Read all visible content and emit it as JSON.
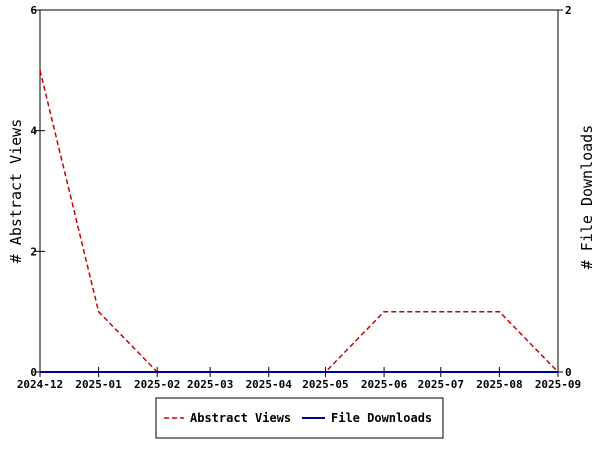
{
  "chart_data": {
    "type": "line",
    "x": [
      "2024-12",
      "2025-01",
      "2025-02",
      "2025-03",
      "2025-04",
      "2025-05",
      "2025-06",
      "2025-07",
      "2025-08",
      "2025-09"
    ],
    "x_dates": [
      "2024-12-01",
      "2025-01-01",
      "2025-02-01",
      "2025-03-01",
      "2025-04-01",
      "2025-05-01",
      "2025-06-01",
      "2025-07-01",
      "2025-08-01",
      "2025-09-01"
    ],
    "series": [
      {
        "name": "Abstract Views",
        "axis": "left",
        "color": "#cc0000",
        "style": "dashed",
        "x": [
          "2024-12-01",
          "2025-01-01",
          "2025-02-01",
          "2025-03-01",
          "2025-04-01",
          "2025-05-01",
          "2025-06-01",
          "2025-07-01",
          "2025-08-01",
          "2025-09-01"
        ],
        "values": [
          5,
          1,
          0,
          0,
          0,
          0,
          1,
          1,
          1,
          0
        ]
      },
      {
        "name": "File Downloads",
        "axis": "right",
        "color": "#000099",
        "style": "solid",
        "x": [
          "2024-12-01",
          "2025-01-01",
          "2025-02-01",
          "2025-03-01",
          "2025-04-01",
          "2025-05-01",
          "2025-06-01",
          "2025-07-01",
          "2025-08-01",
          "2025-09-01"
        ],
        "values": [
          0,
          0,
          0,
          0,
          0,
          0,
          0,
          0,
          0,
          0
        ]
      }
    ],
    "ylabel": "# Abstract Views",
    "y2label": "# File Downloads",
    "ylim": [
      0,
      6
    ],
    "y2lim": [
      0,
      2
    ],
    "yticks": [
      "0",
      "2",
      "4",
      "6"
    ],
    "y2ticks": [
      "0",
      "2"
    ],
    "grid": false,
    "legend_position": "bottom"
  }
}
